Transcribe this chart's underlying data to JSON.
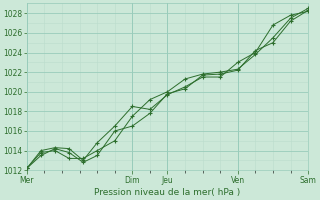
{
  "title": "",
  "xlabel": "Pression niveau de la mer( hPa )",
  "bg_color": "#cce8d8",
  "grid_major_color": "#99ccbb",
  "grid_minor_color": "#bbddcc",
  "line_color": "#2d6e2d",
  "ylim": [
    1012,
    1029
  ],
  "xlim": [
    0,
    8.0
  ],
  "yticks": [
    1012,
    1014,
    1016,
    1018,
    1020,
    1022,
    1024,
    1026,
    1028
  ],
  "day_labels": [
    "Mer",
    "Dim",
    "Jeu",
    "Ven",
    "Sam"
  ],
  "day_positions": [
    0.0,
    3.0,
    4.0,
    6.0,
    8.0
  ],
  "line1_x": [
    0.0,
    0.4,
    0.8,
    1.2,
    1.6,
    2.0,
    2.5,
    3.0,
    3.5,
    4.0,
    4.5,
    5.0,
    5.5,
    6.0,
    6.5,
    7.0,
    7.5,
    8.0
  ],
  "line1_y": [
    1012.2,
    1013.8,
    1014.0,
    1013.2,
    1013.2,
    1014.0,
    1015.0,
    1017.5,
    1019.2,
    1020.0,
    1021.3,
    1021.8,
    1022.0,
    1022.3,
    1023.8,
    1025.5,
    1027.5,
    1028.5
  ],
  "line2_x": [
    0.0,
    0.4,
    0.8,
    1.2,
    1.6,
    2.0,
    2.5,
    3.0,
    3.5,
    4.0,
    4.5,
    5.0,
    5.5,
    6.0,
    6.5,
    7.0,
    7.5,
    8.0
  ],
  "line2_y": [
    1012.2,
    1013.5,
    1014.2,
    1013.8,
    1012.8,
    1013.5,
    1016.0,
    1016.5,
    1017.8,
    1019.8,
    1020.3,
    1021.7,
    1021.8,
    1022.2,
    1024.2,
    1025.0,
    1027.2,
    1028.3
  ],
  "line3_x": [
    0.0,
    0.4,
    0.8,
    1.2,
    1.6,
    2.0,
    2.5,
    3.0,
    3.5,
    4.0,
    4.5,
    5.0,
    5.5,
    6.0,
    6.5,
    7.0,
    7.5,
    8.0
  ],
  "line3_y": [
    1012.2,
    1014.0,
    1014.3,
    1014.2,
    1013.0,
    1014.8,
    1016.5,
    1018.5,
    1018.2,
    1019.7,
    1020.5,
    1021.5,
    1021.5,
    1023.0,
    1024.0,
    1026.8,
    1027.8,
    1028.2
  ],
  "xlabel_fontsize": 6.5,
  "tick_labelsize": 5.5,
  "tick_color": "#2d6e2d"
}
